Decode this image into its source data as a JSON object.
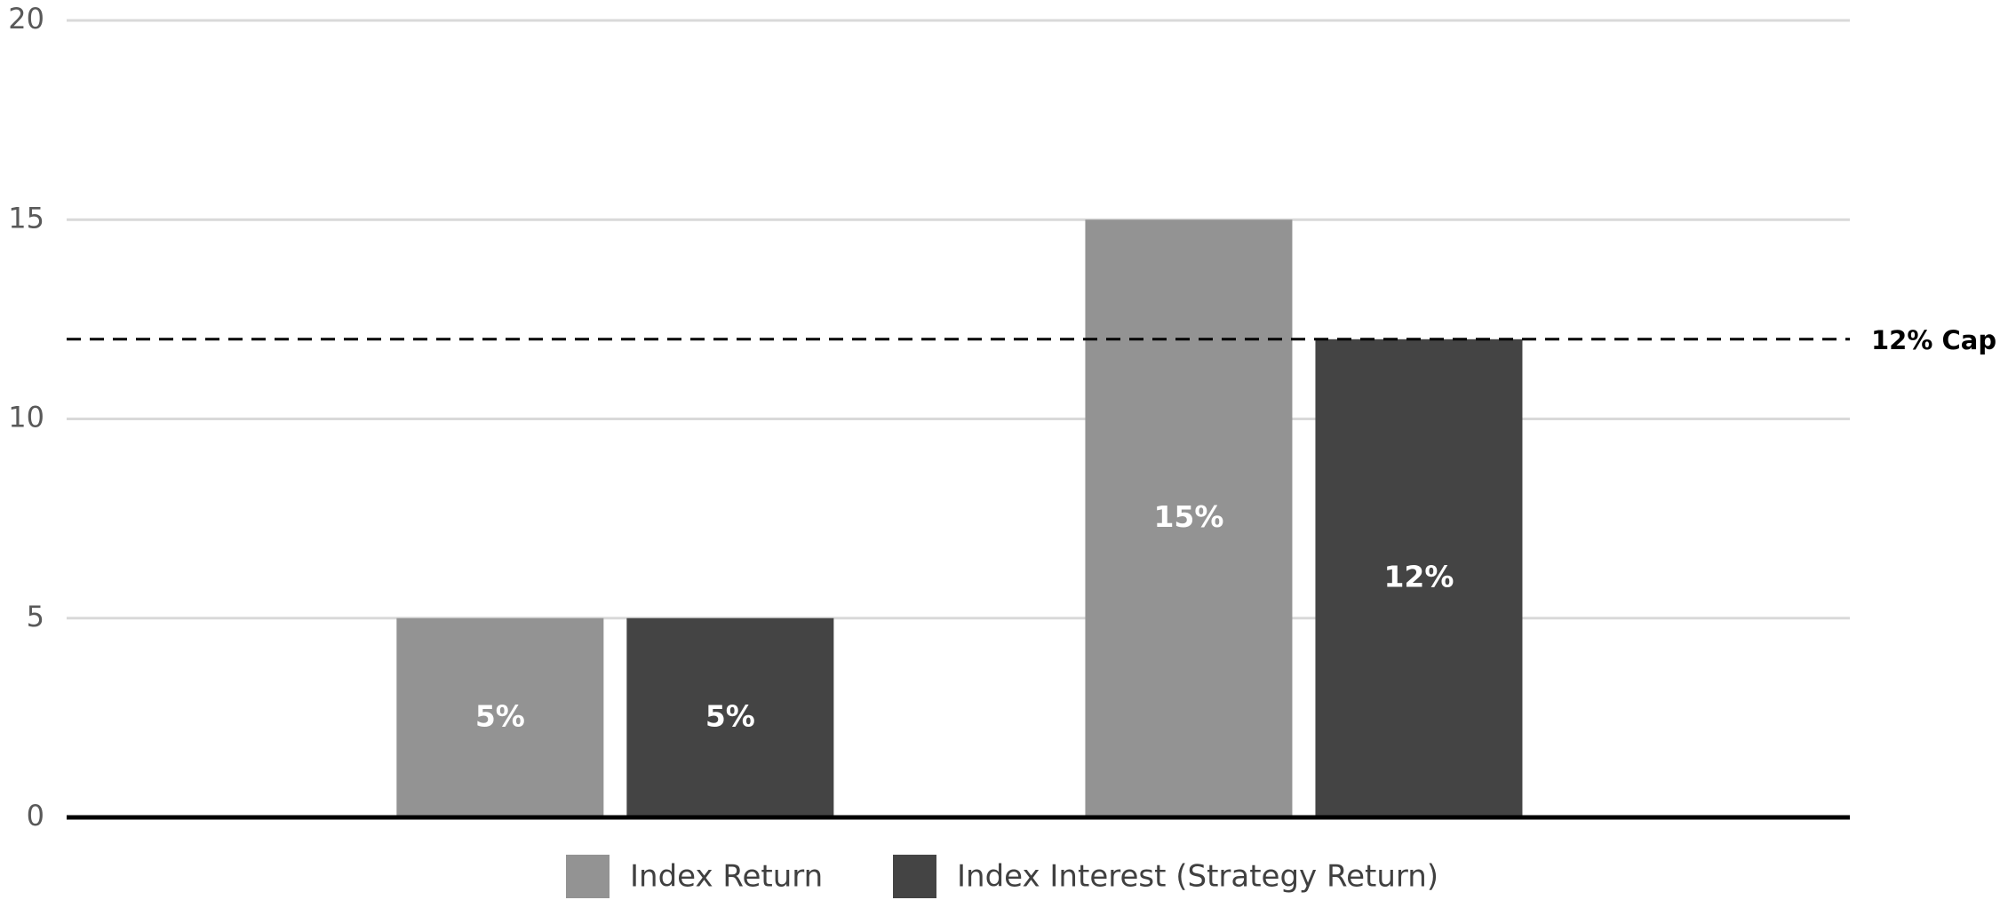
{
  "chart_data": {
    "type": "bar",
    "categories": [
      null,
      null
    ],
    "series": [
      {
        "name": "Index Return",
        "color": "#939393",
        "values": [
          5,
          15
        ],
        "value_labels": [
          "5%",
          "15%"
        ]
      },
      {
        "name": "Index Interest (Strategy Return)",
        "color": "#444444",
        "values": [
          5,
          12
        ],
        "value_labels": [
          "5%",
          "12%"
        ]
      }
    ],
    "reference_lines": [
      {
        "value": 12,
        "label": "12% Cap"
      }
    ],
    "ylim": [
      0,
      20
    ],
    "yticks": [
      0,
      5,
      10,
      15,
      20
    ],
    "grid": true
  }
}
